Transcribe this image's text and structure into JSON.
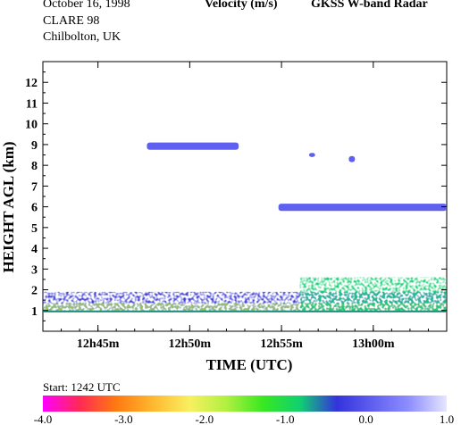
{
  "header": {
    "date": "October  16, 1998",
    "campaign": "CLARE 98",
    "location": "Chilbolton, UK",
    "quantity": "Velocity (m/s)",
    "instrument": "GKSS  W-band Radar",
    "start": "Start:  1242 UTC"
  },
  "chart_data": {
    "type": "heatmap",
    "xlabel": "TIME (UTC)",
    "ylabel": "HEIGHT AGL (km)",
    "x_unit": "minutes UTC",
    "xlim": [
      "12:42",
      "13:04"
    ],
    "ylim": [
      0,
      13
    ],
    "x_ticks": [
      {
        "time": "12:45",
        "label": "12h45m"
      },
      {
        "time": "12:50",
        "label": "12h50m"
      },
      {
        "time": "12:55",
        "label": "12h55m"
      },
      {
        "time": "13:00",
        "label": "13h00m"
      }
    ],
    "y_ticks": [
      1,
      2,
      3,
      4,
      5,
      6,
      7,
      8,
      9,
      10,
      11,
      12
    ],
    "colorbar": {
      "label_values": [
        "-4.0",
        "-3.0",
        "-2.0",
        "-1.0",
        "0.0",
        "1.0"
      ],
      "range": [
        -4.0,
        1.0
      ],
      "colors": [
        "#ff00ff",
        "#ff2a55",
        "#ff7a10",
        "#ffb830",
        "#f8f060",
        "#b0f040",
        "#38e820",
        "#10d070",
        "#3333dd",
        "#6060f0",
        "#9090ff",
        "#e6e6ff"
      ]
    },
    "echoes": [
      {
        "feature": "upper cloud band",
        "t_start": "12:47:40",
        "t_end": "12:52:40",
        "h_min_km": 8.75,
        "h_max_km": 9.1,
        "velocity_ms": 0.3
      },
      {
        "feature": "mid-level layer",
        "t_start": "12:54:50",
        "t_end": "13:04:00",
        "h_min_km": 5.8,
        "h_max_km": 6.15,
        "velocity_ms": 0.3
      },
      {
        "feature": "isolated echo",
        "t_start": "12:56:30",
        "t_end": "12:56:50",
        "h_min_km": 8.4,
        "h_max_km": 8.6,
        "velocity_ms": 0.3
      },
      {
        "feature": "isolated echo",
        "t_start": "12:58:40",
        "t_end": "12:59:00",
        "h_min_km": 8.15,
        "h_max_km": 8.45,
        "velocity_ms": 0.3
      },
      {
        "feature": "boundary layer",
        "t_start": "12:42:00",
        "t_end": "13:04:00",
        "h_min_km": 0.95,
        "h_max_km": 1.9,
        "velocity_ms": -0.5
      },
      {
        "feature": "convective cells",
        "t_start": "12:56:00",
        "t_end": "13:04:00",
        "h_min_km": 1.0,
        "h_max_km": 2.6,
        "velocity_ms": -1.0
      },
      {
        "feature": "ground clutter line",
        "t_start": "12:42:00",
        "t_end": "13:04:00",
        "h_min_km": 0.95,
        "h_max_km": 1.0,
        "velocity_ms": -0.8
      }
    ]
  }
}
